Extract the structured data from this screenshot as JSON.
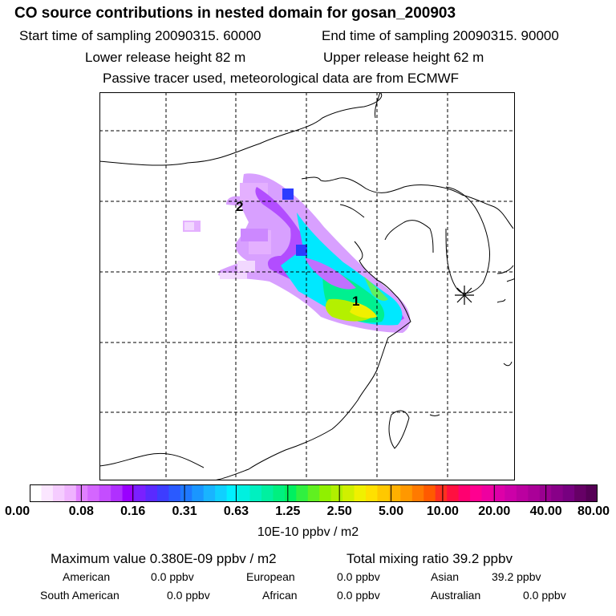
{
  "header": {
    "title": "CO  source contributions in nested domain for gosan_200903",
    "start_label": "Start time of sampling 20090315. 60000",
    "end_label": "End time of sampling 20090315. 90000",
    "lower_label": "Lower release height   82 m",
    "upper_label": "Upper release height   62 m",
    "note": "Passive tracer used, meteorological data are from ECMWF"
  },
  "map": {
    "labels": [
      "2",
      "1"
    ],
    "receptor_marker": "asterisk-icon"
  },
  "colorbar": {
    "ticks": [
      "0.00",
      "0.08",
      "0.16",
      "0.31",
      "0.63",
      "1.25",
      "2.50",
      "5.00",
      "10.00",
      "20.00",
      "40.00",
      "80.00"
    ],
    "colors": [
      "#ffffff",
      "#fbe6ff",
      "#f5ccff",
      "#efb3ff",
      "#e080ff",
      "#d466ff",
      "#c44dff",
      "#b030ff",
      "#9a00ff",
      "#7a20ff",
      "#5a2aff",
      "#3d3dff",
      "#2a5aff",
      "#1e78ff",
      "#1a96ff",
      "#19b4ff",
      "#10d0ff",
      "#00f0ff",
      "#00f0e0",
      "#00f0c0",
      "#00f0a0",
      "#00f080",
      "#00f060",
      "#30f040",
      "#60f020",
      "#90f000",
      "#b0f000",
      "#d0f000",
      "#f0f000",
      "#ffe000",
      "#ffc800",
      "#ffb000",
      "#ff9800",
      "#ff7a00",
      "#ff5a00",
      "#ff3020",
      "#ff1040",
      "#ff0070",
      "#ff0090",
      "#ee00a0",
      "#dd00a8",
      "#cc00a8",
      "#bb00a0",
      "#aa0098",
      "#990090",
      "#880088",
      "#770080",
      "#660066",
      "#550055"
    ],
    "unit": "10E-10 ppbv / m2"
  },
  "stats": {
    "maximum": "Maximum value  0.380E-09 ppbv / m2",
    "total": "Total mixing ratio       39.2 ppbv"
  },
  "regions": [
    {
      "name": "American",
      "value": "0.0 ppbv"
    },
    {
      "name": "European",
      "value": "0.0 ppbv"
    },
    {
      "name": "Asian",
      "value": "39.2 ppbv"
    },
    {
      "name": "South American",
      "value": "0.0 ppbv"
    },
    {
      "name": "African",
      "value": "0.0 ppbv"
    },
    {
      "name": "Australian",
      "value": "0.0 ppbv"
    }
  ]
}
